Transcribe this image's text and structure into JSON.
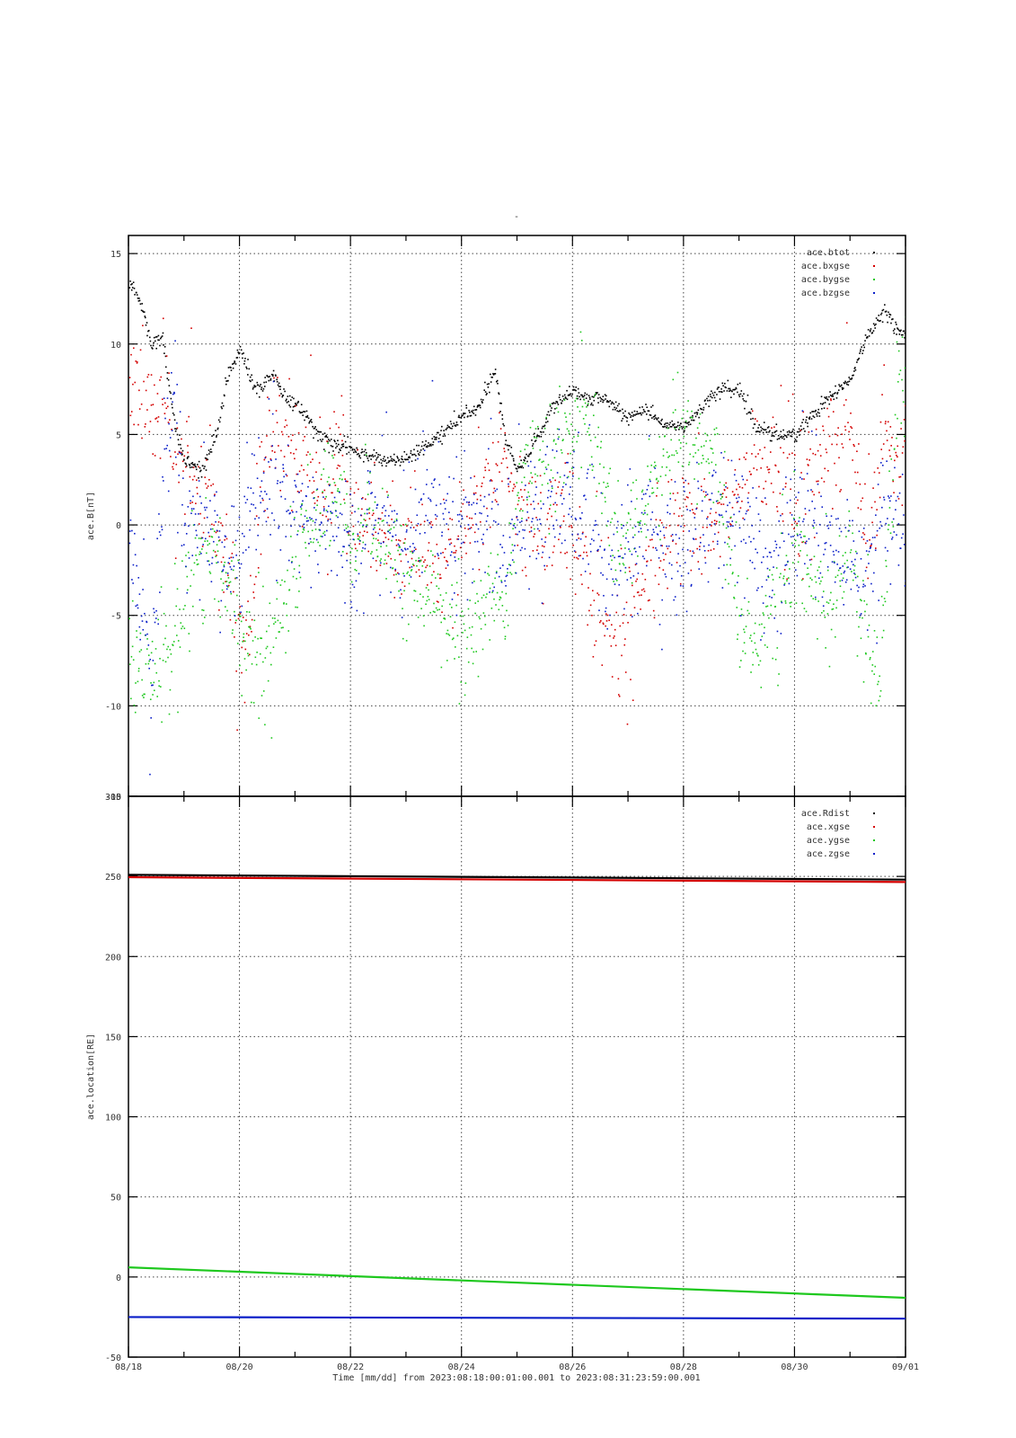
{
  "figure": {
    "title": "-",
    "xlabel": "Time [mm/dd]  from 2023:08:18:00:01:00.001  to  2023:08:31:23:59:00.001"
  },
  "colors": {
    "black": "#000000",
    "red": "#d40000",
    "green": "#1ec81e",
    "blue": "#0a1ec8",
    "grid": "#444444"
  },
  "chart_data": [
    {
      "type": "scatter",
      "ylabel": "ace.B[nT]",
      "xlim": [
        0,
        14
      ],
      "ylim": [
        -15,
        16
      ],
      "grid": true,
      "legend_placement": "top-right",
      "x_ticks": [
        "08/18",
        "08/20",
        "08/22",
        "08/24",
        "08/26",
        "08/28",
        "08/30",
        "09/01"
      ],
      "y_ticks": [
        15,
        10,
        5,
        0,
        -5,
        -10,
        -15
      ],
      "x_tick_values": [
        0,
        2,
        4,
        6,
        8,
        10,
        12,
        14
      ],
      "series": [
        {
          "name": "ace.btot",
          "color": "black",
          "spread": 0.3,
          "density": 80,
          "x": [
            0,
            0.2,
            0.4,
            0.6,
            0.8,
            1.0,
            1.2,
            1.4,
            1.6,
            1.8,
            2.0,
            2.2,
            2.4,
            2.6,
            2.8,
            3.0,
            3.3,
            3.6,
            4.0,
            4.4,
            4.8,
            5.2,
            5.6,
            6.0,
            6.3,
            6.6,
            6.8,
            7.0,
            7.3,
            7.6,
            8.0,
            8.3,
            8.6,
            9.0,
            9.3,
            9.6,
            10.0,
            10.3,
            10.6,
            11.0,
            11.3,
            11.6,
            12.0,
            12.3,
            12.6,
            13.0,
            13.3,
            13.6,
            13.8,
            14.0
          ],
          "y": [
            13.5,
            12.5,
            10,
            10.5,
            6,
            3.5,
            3.2,
            3.5,
            5.5,
            8.5,
            9.8,
            8,
            7.5,
            8.5,
            7,
            6.8,
            5.5,
            4.5,
            4.2,
            3.8,
            3.5,
            4.0,
            5.0,
            6.0,
            6.5,
            8.5,
            4.5,
            3.0,
            4.5,
            6.5,
            7.5,
            7.0,
            7.0,
            6.0,
            6.5,
            5.5,
            5.5,
            6.5,
            7.5,
            7.5,
            5.5,
            5.0,
            5.0,
            6.0,
            7.0,
            8.0,
            10.5,
            12.0,
            11.0,
            10.5
          ]
        },
        {
          "name": "ace.bxgse",
          "color": "red",
          "spread": 2.5,
          "density": 70,
          "x": [
            0,
            0.3,
            0.6,
            0.9,
            1.0,
            1.3,
            1.6,
            1.9,
            2.0,
            2.2,
            2.4,
            2.6,
            2.9,
            3.2,
            3.5,
            3.8,
            4.0,
            4.4,
            4.8,
            5.2,
            5.6,
            5.9,
            6.2,
            6.5,
            6.8,
            7.0,
            7.3,
            7.6,
            7.9,
            8.2,
            8.5,
            8.8,
            9.0,
            9.3,
            9.6,
            10.0,
            10.3,
            10.6,
            11.0,
            11.3,
            11.6,
            12.0,
            12.3,
            12.6,
            13.0,
            13.3,
            13.6,
            14.0
          ],
          "y": [
            8,
            7,
            6,
            4,
            3,
            2.5,
            0,
            -3,
            -7,
            -5,
            3,
            5,
            4,
            3,
            2,
            3.5,
            1,
            0.5,
            -1,
            -2,
            -2.5,
            -1,
            1,
            3,
            4,
            0,
            0,
            0.5,
            0,
            -2,
            -5,
            -6,
            -6,
            -3,
            -1,
            1,
            0,
            0.5,
            2,
            3.5,
            3,
            1,
            3,
            4,
            6,
            -2,
            5,
            3
          ]
        },
        {
          "name": "ace.bygse",
          "color": "green",
          "spread": 2.2,
          "density": 80,
          "x": [
            0,
            0.2,
            0.5,
            0.8,
            1.0,
            1.2,
            1.5,
            1.8,
            2.0,
            2.3,
            2.6,
            2.9,
            3.2,
            3.5,
            3.8,
            4.0,
            4.3,
            4.6,
            5.0,
            5.4,
            5.8,
            6.2,
            6.5,
            6.8,
            7.0,
            7.3,
            7.6,
            8.0,
            8.2,
            8.5,
            8.8,
            9.0,
            9.3,
            9.6,
            10.0,
            10.3,
            10.6,
            11.0,
            11.3,
            11.6,
            12.0,
            12.3,
            12.6,
            13.0,
            13.2,
            13.5,
            13.8,
            14.0
          ],
          "y": [
            -7,
            -9,
            -8,
            -6,
            -3,
            -2,
            -1,
            -4,
            -5,
            -7,
            -6,
            -3,
            0,
            1,
            2,
            -2,
            0,
            -1,
            -3,
            -4,
            -5,
            -6,
            -3,
            -5,
            2,
            3,
            4,
            6,
            6,
            3,
            -2,
            0,
            1,
            4,
            5,
            5,
            3,
            -5,
            -6,
            -5,
            -2,
            -3,
            -4,
            -2,
            -6,
            -8,
            5,
            10
          ]
        },
        {
          "name": "ace.bzgse",
          "color": "blue",
          "spread": 2.6,
          "density": 80,
          "x": [
            0,
            0.2,
            0.4,
            0.6,
            0.8,
            1.0,
            1.3,
            1.6,
            1.9,
            2.2,
            2.5,
            2.8,
            3.1,
            3.4,
            3.7,
            4.0,
            4.3,
            4.6,
            5.0,
            5.4,
            5.8,
            6.2,
            6.5,
            6.8,
            7.0,
            7.3,
            7.6,
            8.0,
            8.3,
            8.6,
            9.0,
            9.3,
            9.6,
            10.0,
            10.3,
            10.6,
            11.0,
            11.3,
            11.6,
            12.0,
            12.3,
            12.6,
            13.0,
            13.3,
            13.6,
            14.0
          ],
          "y": [
            1,
            -4,
            -9,
            2,
            7,
            0,
            0,
            -1,
            -2,
            1,
            2,
            2,
            1,
            0,
            0,
            -2,
            1,
            0,
            -1,
            2,
            0,
            0,
            1,
            -3,
            0,
            0,
            2,
            1,
            0,
            -3,
            -1,
            0,
            -1,
            -1,
            0,
            1,
            0,
            -2,
            -2,
            0,
            1,
            -1,
            -2,
            -3,
            1,
            0
          ]
        }
      ]
    },
    {
      "type": "line",
      "ylabel": "ace.location[RE]",
      "xlim": [
        0,
        14
      ],
      "ylim": [
        -50,
        300
      ],
      "grid": true,
      "legend_placement": "top-right",
      "x_ticks": [
        "08/18",
        "08/20",
        "08/22",
        "08/24",
        "08/26",
        "08/28",
        "08/30",
        "09/01"
      ],
      "y_ticks": [
        300,
        250,
        200,
        150,
        100,
        50,
        0,
        -50
      ],
      "x_tick_values": [
        0,
        2,
        4,
        6,
        8,
        10,
        12,
        14
      ],
      "series": [
        {
          "name": "ace.Rdist",
          "color": "black",
          "x": [
            0,
            14
          ],
          "y": [
            251,
            248
          ]
        },
        {
          "name": "ace.xgse",
          "color": "red",
          "x": [
            0,
            14
          ],
          "y": [
            249.5,
            246.5
          ]
        },
        {
          "name": "ace.ygse",
          "color": "green",
          "x": [
            0,
            14
          ],
          "y": [
            6,
            -13
          ]
        },
        {
          "name": "ace.zgse",
          "color": "blue",
          "x": [
            0,
            14
          ],
          "y": [
            -25,
            -26
          ]
        }
      ]
    }
  ]
}
